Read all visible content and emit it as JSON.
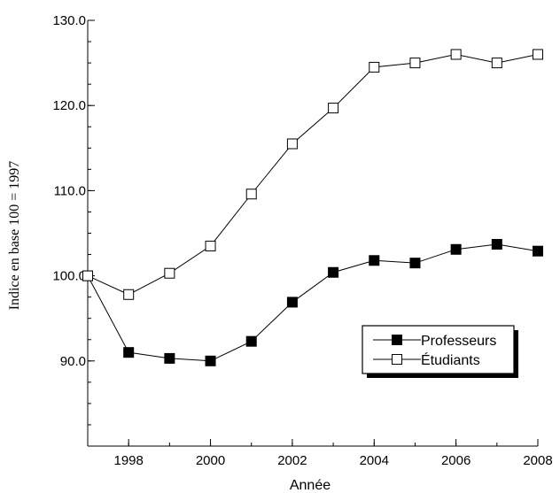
{
  "chart_data": {
    "type": "line",
    "xlabel": "Année",
    "ylabel": "Indice en base 100 = 1997",
    "x": [
      1997,
      1998,
      1999,
      2000,
      2001,
      2002,
      2003,
      2004,
      2005,
      2006,
      2007,
      2008
    ],
    "xlim": [
      1997,
      2008
    ],
    "ylim": [
      80,
      130
    ],
    "x_ticks": [
      1998,
      2000,
      2002,
      2004,
      2006,
      2008
    ],
    "x_tick_labels": [
      "1998",
      "2000",
      "2002",
      "2004",
      "2006",
      "2008"
    ],
    "y_ticks": [
      90,
      100,
      110,
      120,
      130
    ],
    "y_tick_labels": [
      "90.0",
      "100.0",
      "110.0",
      "120.0",
      "130.0"
    ],
    "grid": false,
    "legend_position": "bottom-right",
    "series": [
      {
        "name": "Professeurs",
        "marker": "filled-square",
        "color": "#000000",
        "values": [
          100.0,
          91.0,
          90.3,
          90.0,
          92.3,
          96.9,
          100.4,
          101.8,
          101.5,
          103.1,
          103.7,
          102.9
        ]
      },
      {
        "name": "Étudiants",
        "marker": "open-square",
        "color": "#000000",
        "values": [
          100.0,
          97.8,
          100.3,
          103.5,
          109.6,
          115.5,
          119.7,
          124.5,
          125.0,
          126.0,
          125.0,
          126.0
        ]
      }
    ]
  }
}
